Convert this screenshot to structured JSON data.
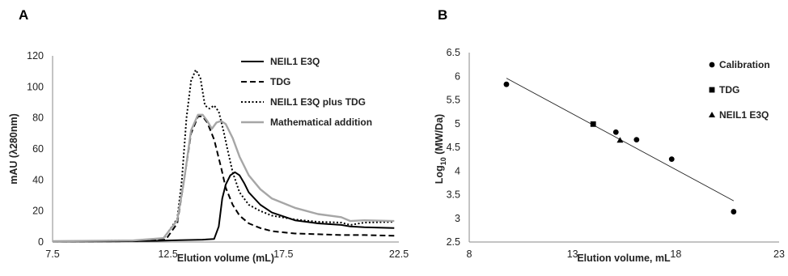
{
  "chart_data": [
    {
      "type": "line",
      "panel_label": "A",
      "xlabel": "Elution volume (mL)",
      "ylabel": "mAU (λ280nm)",
      "xlim": [
        7.5,
        22.5
      ],
      "ylim": [
        0,
        120
      ],
      "xticks": [
        "7.5",
        "12.5",
        "17.5",
        "22.5"
      ],
      "yticks": [
        "0",
        "20",
        "40",
        "60",
        "80",
        "100",
        "120"
      ],
      "grid": false,
      "legend_position": "top-right",
      "series": [
        {
          "name": "NEIL1 E3Q",
          "color": "#000000",
          "style": "solid",
          "x": [
            7.5,
            10.0,
            12.0,
            13.0,
            14.0,
            14.5,
            14.7,
            14.85,
            15.0,
            15.2,
            15.4,
            15.6,
            15.8,
            16.0,
            16.5,
            17.0,
            18.0,
            19.0,
            20.0,
            20.4,
            21.0,
            22.3
          ],
          "y": [
            0.3,
            0.4,
            0.8,
            1.2,
            1.5,
            2.0,
            10.0,
            28.0,
            37.0,
            43.0,
            45.0,
            43.0,
            38.0,
            32.0,
            24.0,
            19.0,
            14.0,
            12.0,
            11.0,
            10.0,
            9.5,
            9.0
          ]
        },
        {
          "name": "TDG",
          "color": "#000000",
          "style": "dashed",
          "x": [
            7.5,
            11.0,
            12.4,
            12.9,
            13.2,
            13.5,
            13.8,
            14.0,
            14.2,
            14.5,
            14.8,
            15.0,
            15.3,
            15.6,
            16.0,
            16.5,
            17.0,
            18.0,
            19.0,
            20.0,
            21.0,
            22.3
          ],
          "y": [
            0.3,
            0.5,
            1.5,
            12.0,
            40.0,
            70.0,
            81.0,
            81.0,
            77.0,
            66.0,
            48.0,
            35.0,
            24.0,
            17.0,
            12.0,
            9.0,
            7.0,
            5.5,
            5.0,
            4.5,
            4.5,
            4.0
          ]
        },
        {
          "name": "NEIL1 E3Q plus TDG",
          "color": "#000000",
          "style": "dotted",
          "x": [
            7.5,
            11.0,
            12.3,
            12.9,
            13.1,
            13.3,
            13.5,
            13.7,
            13.9,
            14.1,
            14.3,
            14.5,
            14.7,
            14.9,
            15.1,
            15.3,
            15.6,
            16.0,
            16.5,
            17.0,
            18.0,
            19.0,
            20.0,
            20.4,
            21.0,
            22.3
          ],
          "y": [
            0.4,
            1.0,
            2.0,
            15.0,
            40.0,
            80.0,
            104.0,
            111.0,
            106.0,
            88.0,
            86.0,
            88.0,
            84.0,
            72.0,
            58.0,
            45.0,
            32.0,
            24.0,
            20.0,
            17.0,
            14.5,
            13.0,
            12.5,
            11.0,
            12.5,
            13.0
          ]
        },
        {
          "name": "Mathematical addition",
          "color": "#a6a6a6",
          "style": "solid",
          "x": [
            7.5,
            11.0,
            12.3,
            12.9,
            13.2,
            13.5,
            13.8,
            14.0,
            14.2,
            14.4,
            14.6,
            14.8,
            15.0,
            15.3,
            15.6,
            16.0,
            16.5,
            17.0,
            18.0,
            19.0,
            20.0,
            20.4,
            21.0,
            22.3
          ],
          "y": [
            0.5,
            1.0,
            2.5,
            14.0,
            40.0,
            72.0,
            82.0,
            82.0,
            78.0,
            73.0,
            77.0,
            78.0,
            76.0,
            67.0,
            55.0,
            43.0,
            34.0,
            28.0,
            22.0,
            18.0,
            16.0,
            13.5,
            14.0,
            13.5
          ]
        }
      ]
    },
    {
      "type": "scatter",
      "panel_label": "B",
      "xlabel": "Elution volume, mL",
      "ylabel_main": "Log",
      "ylabel_sub": "10",
      "ylabel_rest": " (MW/Da)",
      "xlim": [
        8,
        23
      ],
      "ylim": [
        2.5,
        6.5
      ],
      "xticks": [
        "8",
        "13",
        "18",
        "23"
      ],
      "yticks": [
        "2.5",
        "3",
        "3.5",
        "4",
        "4.5",
        "5",
        "5.5",
        "6",
        "6.5"
      ],
      "grid": false,
      "legend_position": "top-right",
      "series": [
        {
          "name": "Calibration",
          "marker": "circle",
          "x": [
            9.8,
            15.1,
            16.1,
            17.8,
            20.8
          ],
          "y": [
            5.83,
            4.82,
            4.66,
            4.25,
            3.14
          ]
        },
        {
          "name": "TDG",
          "marker": "square",
          "x": [
            14.0
          ],
          "y": [
            4.99
          ]
        },
        {
          "name": "NEIL1 E3Q",
          "marker": "triangle",
          "x": [
            15.3
          ],
          "y": [
            4.65
          ]
        }
      ],
      "trendline": {
        "x": [
          9.8,
          20.8
        ],
        "y": [
          5.96,
          3.37
        ]
      }
    }
  ]
}
